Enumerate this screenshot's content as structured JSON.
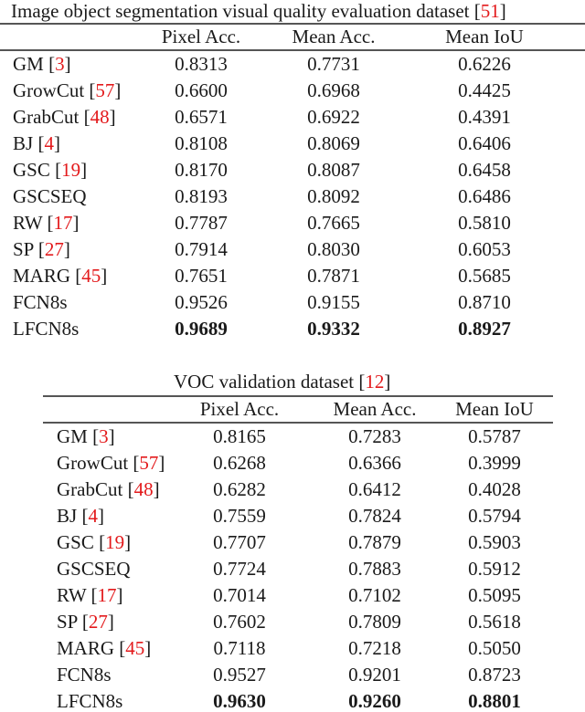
{
  "table1": {
    "caption": "Image object segmentation visual quality evaluation dataset",
    "caption_ref": "51",
    "headers": [
      "Pixel Acc.",
      "Mean Acc.",
      "Mean IoU"
    ],
    "rows": [
      {
        "method": "GM",
        "ref": "3",
        "values": [
          "0.8313",
          "0.7731",
          "0.6226"
        ],
        "bold": false
      },
      {
        "method": "GrowCut",
        "ref": "57",
        "values": [
          "0.6600",
          "0.6968",
          "0.4425"
        ],
        "bold": false
      },
      {
        "method": "GrabCut",
        "ref": "48",
        "values": [
          "0.6571",
          "0.6922",
          "0.4391"
        ],
        "bold": false
      },
      {
        "method": "BJ",
        "ref": "4",
        "values": [
          "0.8108",
          "0.8069",
          "0.6406"
        ],
        "bold": false
      },
      {
        "method": "GSC",
        "ref": "19",
        "values": [
          "0.8170",
          "0.8087",
          "0.6458"
        ],
        "bold": false
      },
      {
        "method": "GSCSEQ",
        "ref": "",
        "values": [
          "0.8193",
          "0.8092",
          "0.6486"
        ],
        "bold": false
      },
      {
        "method": "RW",
        "ref": "17",
        "values": [
          "0.7787",
          "0.7665",
          "0.5810"
        ],
        "bold": false
      },
      {
        "method": "SP",
        "ref": "27",
        "values": [
          "0.7914",
          "0.8030",
          "0.6053"
        ],
        "bold": false
      },
      {
        "method": "MARG",
        "ref": "45",
        "values": [
          "0.7651",
          "0.7871",
          "0.5685"
        ],
        "bold": false
      },
      {
        "method": "FCN8s",
        "ref": "",
        "values": [
          "0.9526",
          "0.9155",
          "0.8710"
        ],
        "bold": false
      },
      {
        "method": "LFCN8s",
        "ref": "",
        "values": [
          "0.9689",
          "0.9332",
          "0.8927"
        ],
        "bold": true
      }
    ]
  },
  "table2": {
    "caption": "VOC validation dataset",
    "caption_ref": "12",
    "headers": [
      "Pixel Acc.",
      "Mean Acc.",
      "Mean IoU"
    ],
    "rows": [
      {
        "method": "GM",
        "ref": "3",
        "values": [
          "0.8165",
          "0.7283",
          "0.5787"
        ],
        "bold": false
      },
      {
        "method": "GrowCut",
        "ref": "57",
        "values": [
          "0.6268",
          "0.6366",
          "0.3999"
        ],
        "bold": false
      },
      {
        "method": "GrabCut",
        "ref": "48",
        "values": [
          "0.6282",
          "0.6412",
          "0.4028"
        ],
        "bold": false
      },
      {
        "method": "BJ",
        "ref": "4",
        "values": [
          "0.7559",
          "0.7824",
          "0.5794"
        ],
        "bold": false
      },
      {
        "method": "GSC",
        "ref": "19",
        "values": [
          "0.7707",
          "0.7879",
          "0.5903"
        ],
        "bold": false
      },
      {
        "method": "GSCSEQ",
        "ref": "",
        "values": [
          "0.7724",
          "0.7883",
          "0.5912"
        ],
        "bold": false
      },
      {
        "method": "RW",
        "ref": "17",
        "values": [
          "0.7014",
          "0.7102",
          "0.5095"
        ],
        "bold": false
      },
      {
        "method": "SP",
        "ref": "27",
        "values": [
          "0.7602",
          "0.7809",
          "0.5618"
        ],
        "bold": false
      },
      {
        "method": "MARG",
        "ref": "45",
        "values": [
          "0.7118",
          "0.7218",
          "0.5050"
        ],
        "bold": false
      },
      {
        "method": "FCN8s",
        "ref": "",
        "values": [
          "0.9527",
          "0.9201",
          "0.8723"
        ],
        "bold": false
      },
      {
        "method": "LFCN8s",
        "ref": "",
        "values": [
          "0.9630",
          "0.9260",
          "0.8801"
        ],
        "bold": true
      }
    ]
  },
  "colors": {
    "text": "#1a1a1a",
    "reference": "#e31a1c",
    "rule": "#555555"
  }
}
